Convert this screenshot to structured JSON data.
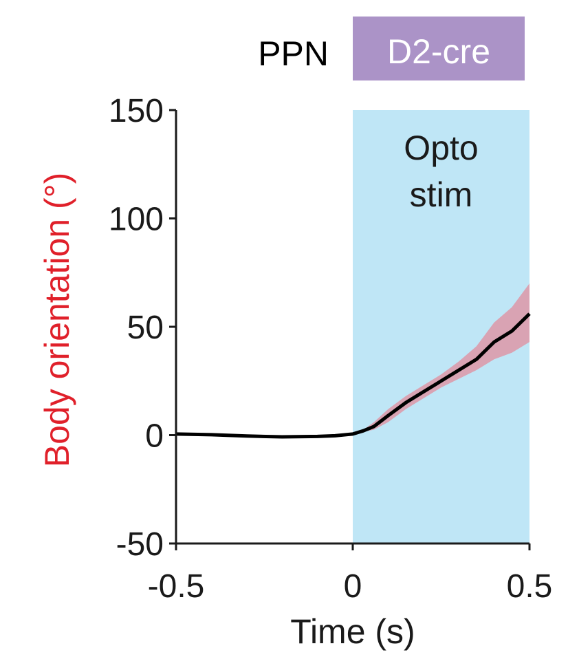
{
  "header": {
    "region": "PPN",
    "badge": "D2-cre"
  },
  "colors": {
    "badge_bg": "#ab93c7",
    "stim_bg": "#bfe6f6",
    "band": "#d9a3b3",
    "line": "#000000",
    "ylabel": "#e0202a"
  },
  "chart_data": {
    "type": "line",
    "xlabel": "Time (s)",
    "ylabel": "Body orientation (°)",
    "xlim": [
      -0.5,
      0.5
    ],
    "ylim": [
      -50,
      150
    ],
    "xticks": [
      -0.5,
      0,
      0.5
    ],
    "xtick_labels": [
      "-0.5",
      "0",
      "0.5"
    ],
    "yticks": [
      -50,
      0,
      50,
      100,
      150
    ],
    "ytick_labels": [
      "-50",
      "0",
      "50",
      "100",
      "150"
    ],
    "shaded_region": {
      "label_lines": [
        "Opto",
        "stim"
      ],
      "x": [
        0,
        0.5
      ]
    },
    "series": [
      {
        "x": [
          -0.5,
          -0.4,
          -0.3,
          -0.2,
          -0.1,
          -0.05,
          0,
          0.03,
          0.06,
          0.1,
          0.15,
          0.2,
          0.25,
          0.3,
          0.35,
          0.4,
          0.45,
          0.5
        ],
        "y": [
          0.5,
          0.2,
          -0.4,
          -0.8,
          -0.6,
          -0.3,
          0.5,
          2,
          4,
          9,
          15,
          20,
          25,
          30,
          35,
          43,
          48,
          56
        ],
        "upper": [
          0.5,
          0.2,
          -0.4,
          -0.8,
          -0.6,
          -0.3,
          0.5,
          2.5,
          6,
          12,
          18,
          23,
          28,
          34,
          41,
          52,
          59,
          70
        ],
        "lower": [
          0.5,
          0.2,
          -0.4,
          -0.8,
          -0.6,
          -0.3,
          0.5,
          1.5,
          2.5,
          6,
          12,
          17,
          22,
          26,
          30,
          35,
          38,
          43
        ]
      }
    ]
  }
}
